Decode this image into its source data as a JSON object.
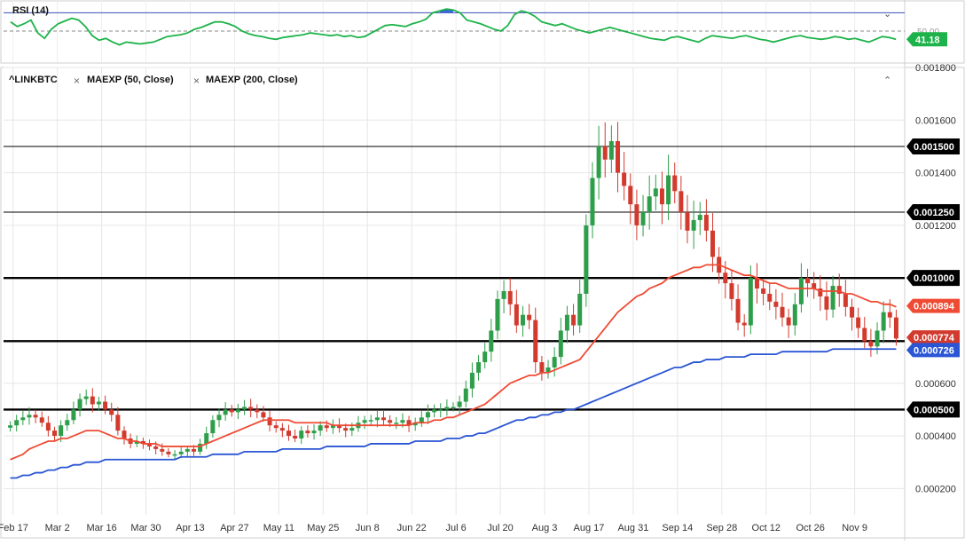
{
  "rsi": {
    "label": "RSI (14)",
    "value": "41.18",
    "level_label": "50.00",
    "overbought": 70,
    "midline": 50,
    "ylim": [
      20,
      80
    ],
    "values": [
      60,
      55,
      58,
      62,
      48,
      42,
      52,
      58,
      61,
      64,
      62,
      55,
      45,
      40,
      42,
      38,
      35,
      38,
      37,
      36,
      37,
      38,
      41,
      44,
      45,
      46,
      48,
      52,
      54,
      57,
      60,
      60,
      58,
      55,
      50,
      47,
      45,
      44,
      42,
      41,
      43,
      44,
      45,
      46,
      48,
      47,
      46,
      45,
      46,
      44,
      45,
      43,
      44,
      48,
      52,
      56,
      57,
      56,
      55,
      58,
      60,
      63,
      70,
      72,
      74,
      73,
      70,
      62,
      60,
      58,
      55,
      52,
      50,
      56,
      68,
      72,
      70,
      66,
      60,
      58,
      56,
      58,
      55,
      52,
      50,
      48,
      50,
      52,
      54,
      52,
      50,
      48,
      46,
      44,
      42,
      41,
      40,
      43,
      44,
      42,
      40,
      38,
      42,
      45,
      44,
      43,
      42,
      44,
      45,
      43,
      41,
      40,
      38,
      40,
      42,
      44,
      45,
      43,
      42,
      41,
      42,
      44,
      43,
      41,
      42,
      40,
      38,
      41,
      44,
      43,
      41
    ]
  },
  "main": {
    "symbol": "^LINKBTC",
    "indicators": [
      {
        "label": "MAEXP (50, Close)"
      },
      {
        "label": "MAEXP (200, Close)"
      }
    ]
  },
  "colors": {
    "up": "#2e9e4a",
    "down": "#d23a2e",
    "ma50": "#ef4b34",
    "ma200": "#2a55d4",
    "rsi": "#1db34a",
    "rsi_fill": "#3a63e0"
  },
  "chart_data": {
    "type": "candlestick",
    "ylim": [
      0.0001,
      0.0018
    ],
    "y_ticks": [
      "0.001800",
      "0.001600",
      "0.001400",
      "0.001200",
      "0.000600",
      "0.000400",
      "0.000200"
    ],
    "x_ticks": [
      "Feb 17",
      "Mar 2",
      "Mar 16",
      "Mar 30",
      "Apr 13",
      "Apr 27",
      "May 11",
      "May 25",
      "Jun 8",
      "Jun 22",
      "Jul 6",
      "Jul 20",
      "Aug 3",
      "Aug 17",
      "Aug 31",
      "Sep 14",
      "Sep 28",
      "Oct 12",
      "Oct 26",
      "Nov 9"
    ],
    "horizontal_lines": [
      {
        "value": 0.0015,
        "label": "0.001500",
        "weight": "thin"
      },
      {
        "value": 0.00125,
        "label": "0.001250",
        "weight": "thin"
      },
      {
        "value": 0.001,
        "label": "0.001000",
        "weight": "thick"
      },
      {
        "value": 0.00076,
        "label": "",
        "weight": "thick"
      },
      {
        "value": 0.0005,
        "label": "0.000500",
        "weight": "thick"
      }
    ],
    "price_tags": [
      {
        "label": "0.000894",
        "value": 0.000894,
        "series": "MAEXP (50, Close)"
      },
      {
        "label": "0.000774",
        "value": 0.000774,
        "series": "close"
      },
      {
        "label": "0.000726",
        "value": 0.000726,
        "series": "MAEXP (200, Close)"
      }
    ],
    "closes": [
      0.00044,
      0.00046,
      0.00047,
      0.00048,
      0.00047,
      0.00045,
      0.00042,
      0.0004,
      0.00044,
      0.00046,
      0.0005,
      0.00054,
      0.00055,
      0.00052,
      0.00053,
      0.0005,
      0.00048,
      0.00042,
      0.00039,
      0.00037,
      0.00038,
      0.00037,
      0.00036,
      0.00035,
      0.00034,
      0.00033,
      0.00033,
      0.00034,
      0.00035,
      0.00034,
      0.00037,
      0.00041,
      0.00046,
      0.00048,
      0.0005,
      0.00049,
      0.0005,
      0.00051,
      0.0005,
      0.00049,
      0.00047,
      0.00044,
      0.00043,
      0.00042,
      0.0004,
      0.00039,
      0.00042,
      0.00041,
      0.00042,
      0.00044,
      0.00043,
      0.00044,
      0.00043,
      0.00042,
      0.00043,
      0.00045,
      0.00046,
      0.00046,
      0.00047,
      0.00046,
      0.00045,
      0.00045,
      0.00046,
      0.00044,
      0.00045,
      0.00047,
      0.00049,
      0.0005,
      0.0005,
      0.00051,
      0.00051,
      0.00053,
      0.00058,
      0.00064,
      0.00068,
      0.00072,
      0.0008,
      0.00092,
      0.00095,
      0.0009,
      0.00082,
      0.00086,
      0.00084,
      0.00068,
      0.00064,
      0.00066,
      0.0007,
      0.0008,
      0.00086,
      0.00082,
      0.00094,
      0.0012,
      0.00138,
      0.0015,
      0.00145,
      0.00152,
      0.0014,
      0.00135,
      0.00128,
      0.0012,
      0.00125,
      0.00131,
      0.00134,
      0.00128,
      0.00139,
      0.00133,
      0.00125,
      0.00118,
      0.00122,
      0.00124,
      0.00118,
      0.00108,
      0.00102,
      0.00098,
      0.00092,
      0.00083,
      0.00082,
      0.001,
      0.00096,
      0.00094,
      0.00091,
      0.00089,
      0.00085,
      0.00082,
      0.0009,
      0.001,
      0.00098,
      0.00096,
      0.00093,
      0.00088,
      0.00097,
      0.00094,
      0.00089,
      0.00085,
      0.00081,
      0.00076,
      0.00074,
      0.0008,
      0.00087,
      0.00085,
      0.00077
    ],
    "ma50": [
      0.00031,
      0.00032,
      0.00033,
      0.00035,
      0.00036,
      0.00037,
      0.00038,
      0.00038,
      0.00039,
      0.00039,
      0.0004,
      0.00041,
      0.00042,
      0.00042,
      0.00042,
      0.00041,
      0.0004,
      0.00039,
      0.00039,
      0.00038,
      0.00038,
      0.00037,
      0.00037,
      0.00037,
      0.00036,
      0.00036,
      0.00036,
      0.00036,
      0.00036,
      0.00036,
      0.00036,
      0.00037,
      0.00038,
      0.00039,
      0.0004,
      0.00041,
      0.00042,
      0.00043,
      0.00044,
      0.00045,
      0.00046,
      0.00046,
      0.00046,
      0.00046,
      0.00046,
      0.00045,
      0.00045,
      0.00045,
      0.00045,
      0.00045,
      0.00045,
      0.00044,
      0.00044,
      0.00044,
      0.00044,
      0.00044,
      0.00044,
      0.00044,
      0.00044,
      0.00044,
      0.00044,
      0.00044,
      0.00044,
      0.00044,
      0.00045,
      0.00045,
      0.00045,
      0.00046,
      0.00046,
      0.00047,
      0.00047,
      0.00048,
      0.00049,
      0.0005,
      0.00051,
      0.00052,
      0.00054,
      0.00056,
      0.00058,
      0.0006,
      0.00061,
      0.00062,
      0.00063,
      0.00063,
      0.00064,
      0.00064,
      0.00065,
      0.00066,
      0.00067,
      0.00068,
      0.00069,
      0.00072,
      0.00075,
      0.00078,
      0.00081,
      0.00084,
      0.00087,
      0.00089,
      0.00091,
      0.00093,
      0.00094,
      0.00096,
      0.00097,
      0.00098,
      0.001,
      0.00101,
      0.00102,
      0.00103,
      0.00104,
      0.00104,
      0.00105,
      0.00105,
      0.00105,
      0.00104,
      0.00103,
      0.00102,
      0.00101,
      0.00101,
      0.001,
      0.00099,
      0.00098,
      0.00098,
      0.00097,
      0.00096,
      0.00096,
      0.00096,
      0.00096,
      0.00096,
      0.00095,
      0.00095,
      0.00095,
      0.00095,
      0.00094,
      0.00094,
      0.00093,
      0.00092,
      0.00091,
      0.00091,
      0.0009,
      0.0009,
      0.00089
    ],
    "ma200": [
      0.00024,
      0.00024,
      0.00025,
      0.00025,
      0.00026,
      0.00026,
      0.00027,
      0.00027,
      0.00028,
      0.00028,
      0.00029,
      0.00029,
      0.0003,
      0.0003,
      0.0003,
      0.00031,
      0.00031,
      0.00031,
      0.00031,
      0.00031,
      0.00031,
      0.00031,
      0.00031,
      0.00031,
      0.00031,
      0.00031,
      0.00031,
      0.00032,
      0.00032,
      0.00032,
      0.00032,
      0.00032,
      0.00033,
      0.00033,
      0.00033,
      0.00033,
      0.00033,
      0.00034,
      0.00034,
      0.00034,
      0.00034,
      0.00034,
      0.00034,
      0.00035,
      0.00035,
      0.00035,
      0.00035,
      0.00035,
      0.00035,
      0.00035,
      0.00036,
      0.00036,
      0.00036,
      0.00036,
      0.00036,
      0.00036,
      0.00036,
      0.00037,
      0.00037,
      0.00037,
      0.00037,
      0.00037,
      0.00037,
      0.00037,
      0.00038,
      0.00038,
      0.00038,
      0.00038,
      0.00038,
      0.00039,
      0.00039,
      0.00039,
      0.0004,
      0.0004,
      0.00041,
      0.00041,
      0.00042,
      0.00043,
      0.00044,
      0.00045,
      0.00046,
      0.00046,
      0.00047,
      0.00047,
      0.00048,
      0.00048,
      0.00049,
      0.00049,
      0.0005,
      0.0005,
      0.00051,
      0.00052,
      0.00053,
      0.00054,
      0.00055,
      0.00056,
      0.00057,
      0.00058,
      0.00059,
      0.0006,
      0.00061,
      0.00062,
      0.00063,
      0.00064,
      0.00065,
      0.00066,
      0.00066,
      0.00067,
      0.00068,
      0.00068,
      0.00069,
      0.00069,
      0.00069,
      0.0007,
      0.0007,
      0.0007,
      0.0007,
      0.00071,
      0.00071,
      0.00071,
      0.00071,
      0.00071,
      0.00072,
      0.00072,
      0.00072,
      0.00072,
      0.00072,
      0.00072,
      0.00072,
      0.00072,
      0.00073,
      0.00073,
      0.00073,
      0.00073,
      0.00073,
      0.00073,
      0.00073,
      0.00073,
      0.00073,
      0.00073,
      0.00073
    ]
  }
}
